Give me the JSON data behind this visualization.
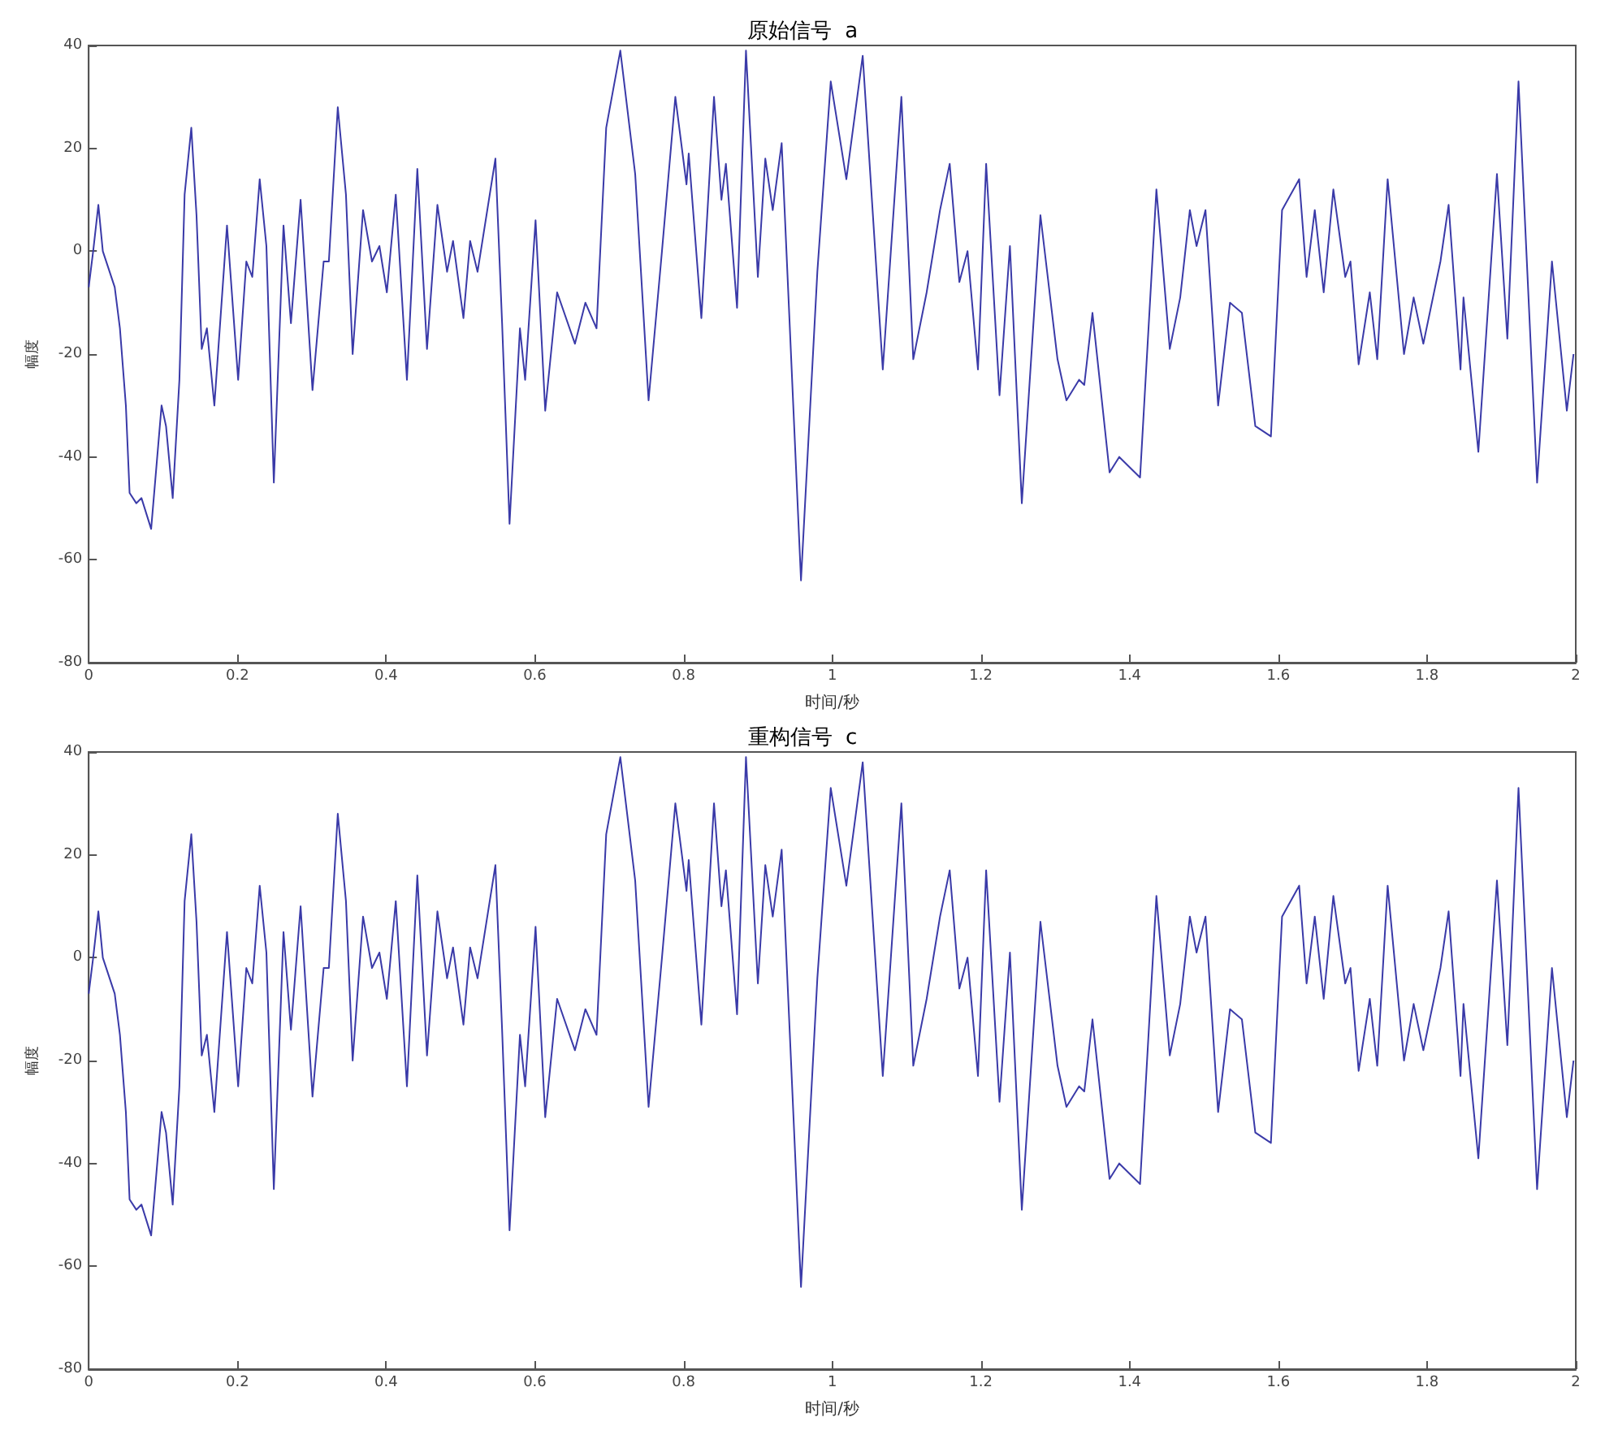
{
  "chart_data": [
    {
      "type": "line",
      "title": "原始信号  a",
      "xlabel": "时间/秒",
      "ylabel": "幅度",
      "xlim": [
        0,
        2
      ],
      "ylim": [
        -80,
        40
      ],
      "xticks": [
        0,
        0.2,
        0.4,
        0.6,
        0.8,
        1,
        1.2,
        1.4,
        1.6,
        1.8,
        2
      ],
      "yticks": [
        -80,
        -60,
        -40,
        -20,
        0,
        20,
        40
      ],
      "grid": false,
      "marker": "none",
      "line_style": "solid",
      "series": [
        {
          "color": "#3a3aa8",
          "x": [
            0,
            0.006,
            0.013,
            0.019,
            0.035,
            0.042,
            0.05,
            0.055,
            0.064,
            0.071,
            0.084,
            0.091,
            0.098,
            0.104,
            0.113,
            0.122,
            0.129,
            0.138,
            0.145,
            0.152,
            0.159,
            0.169,
            0.186,
            0.201,
            0.212,
            0.22,
            0.23,
            0.239,
            0.249,
            0.262,
            0.272,
            0.285,
            0.301,
            0.316,
            0.323,
            0.335,
            0.346,
            0.355,
            0.369,
            0.381,
            0.391,
            0.401,
            0.413,
            0.428,
            0.442,
            0.455,
            0.469,
            0.482,
            0.49,
            0.504,
            0.513,
            0.523,
            0.547,
            0.556,
            0.566,
            0.58,
            0.587,
            0.601,
            0.614,
            0.63,
            0.654,
            0.668,
            0.683,
            0.696,
            0.715,
            0.735,
            0.753,
            0.771,
            0.789,
            0.804,
            0.807,
            0.824,
            0.841,
            0.851,
            0.857,
            0.872,
            0.884,
            0.9,
            0.91,
            0.92,
            0.932,
            0.958,
            0.98,
            0.998,
            1.019,
            1.041,
            1.068,
            1.093,
            1.109,
            1.127,
            1.145,
            1.158,
            1.171,
            1.182,
            1.196,
            1.207,
            1.225,
            1.239,
            1.255,
            1.28,
            1.303,
            1.315,
            1.332,
            1.339,
            1.35,
            1.373,
            1.386,
            1.414,
            1.436,
            1.454,
            1.468,
            1.481,
            1.49,
            1.502,
            1.519,
            1.535,
            1.551,
            1.569,
            1.59,
            1.605,
            1.628,
            1.638,
            1.649,
            1.661,
            1.674,
            1.69,
            1.697,
            1.708,
            1.723,
            1.733,
            1.747,
            1.769,
            1.782,
            1.795,
            1.818,
            1.829,
            1.845,
            1.849,
            1.869,
            1.894,
            1.908,
            1.923,
            1.948,
            1.968,
            1.988,
            1.997
          ],
          "values": [
            -7,
            0,
            9,
            0,
            -7,
            -15,
            -30,
            -47,
            -49,
            -48,
            -54,
            -42,
            -30,
            -34,
            -48,
            -25,
            11,
            24,
            7,
            -19,
            -15,
            -30,
            5,
            -25,
            -2,
            -5,
            14,
            1,
            -45,
            5,
            -14,
            10,
            -27,
            -2,
            -2,
            28,
            11,
            -20,
            8,
            -2,
            1,
            -8,
            11,
            -25,
            16,
            -19,
            9,
            -4,
            2,
            -13,
            2,
            -4,
            18,
            -14,
            -53,
            -15,
            -25,
            6,
            -31,
            -8,
            -18,
            -10,
            -15,
            24,
            39,
            15,
            -29,
            0,
            30,
            13,
            19,
            -13,
            30,
            10,
            17,
            -11,
            39,
            -5,
            18,
            8,
            21,
            -64,
            -4,
            33,
            14,
            38,
            -23,
            30,
            -21,
            -8,
            8,
            17,
            -6,
            0,
            -23,
            17,
            -28,
            1,
            -49,
            7,
            -21,
            -29,
            -25,
            -26,
            -12,
            -43,
            -40,
            -44,
            12,
            -19,
            -9,
            8,
            1,
            8,
            -30,
            -10,
            -12,
            -34,
            -36,
            8,
            14,
            -5,
            8,
            -8,
            12,
            -5,
            -2,
            -22,
            -8,
            -21,
            14,
            -20,
            -9,
            -18,
            -2,
            9,
            -23,
            -9,
            -39,
            15,
            -17,
            33,
            -45,
            -2,
            -31,
            -20
          ]
        }
      ]
    },
    {
      "type": "line",
      "title": "重构信号  c",
      "xlabel": "时间/秒",
      "ylabel": "幅度",
      "xlim": [
        0,
        2
      ],
      "ylim": [
        -80,
        40
      ],
      "xticks": [
        0,
        0.2,
        0.4,
        0.6,
        0.8,
        1,
        1.2,
        1.4,
        1.6,
        1.8,
        2
      ],
      "yticks": [
        -80,
        -60,
        -40,
        -20,
        0,
        20,
        40
      ],
      "grid": false,
      "marker": "none",
      "line_style": "solid",
      "series": [
        {
          "color": "#3a3aa8",
          "x": [
            0,
            0.006,
            0.013,
            0.019,
            0.035,
            0.042,
            0.05,
            0.055,
            0.064,
            0.071,
            0.084,
            0.091,
            0.098,
            0.104,
            0.113,
            0.122,
            0.129,
            0.138,
            0.145,
            0.152,
            0.159,
            0.169,
            0.186,
            0.201,
            0.212,
            0.22,
            0.23,
            0.239,
            0.249,
            0.262,
            0.272,
            0.285,
            0.301,
            0.316,
            0.323,
            0.335,
            0.346,
            0.355,
            0.369,
            0.381,
            0.391,
            0.401,
            0.413,
            0.428,
            0.442,
            0.455,
            0.469,
            0.482,
            0.49,
            0.504,
            0.513,
            0.523,
            0.547,
            0.556,
            0.566,
            0.58,
            0.587,
            0.601,
            0.614,
            0.63,
            0.654,
            0.668,
            0.683,
            0.696,
            0.715,
            0.735,
            0.753,
            0.771,
            0.789,
            0.804,
            0.807,
            0.824,
            0.841,
            0.851,
            0.857,
            0.872,
            0.884,
            0.9,
            0.91,
            0.92,
            0.932,
            0.958,
            0.98,
            0.998,
            1.019,
            1.041,
            1.068,
            1.093,
            1.109,
            1.127,
            1.145,
            1.158,
            1.171,
            1.182,
            1.196,
            1.207,
            1.225,
            1.239,
            1.255,
            1.28,
            1.303,
            1.315,
            1.332,
            1.339,
            1.35,
            1.373,
            1.386,
            1.414,
            1.436,
            1.454,
            1.468,
            1.481,
            1.49,
            1.502,
            1.519,
            1.535,
            1.551,
            1.569,
            1.59,
            1.605,
            1.628,
            1.638,
            1.649,
            1.661,
            1.674,
            1.69,
            1.697,
            1.708,
            1.723,
            1.733,
            1.747,
            1.769,
            1.782,
            1.795,
            1.818,
            1.829,
            1.845,
            1.849,
            1.869,
            1.894,
            1.908,
            1.923,
            1.948,
            1.968,
            1.988,
            1.997
          ],
          "values": [
            -7,
            0,
            9,
            0,
            -7,
            -15,
            -30,
            -47,
            -49,
            -48,
            -54,
            -42,
            -30,
            -34,
            -48,
            -25,
            11,
            24,
            7,
            -19,
            -15,
            -30,
            5,
            -25,
            -2,
            -5,
            14,
            1,
            -45,
            5,
            -14,
            10,
            -27,
            -2,
            -2,
            28,
            11,
            -20,
            8,
            -2,
            1,
            -8,
            11,
            -25,
            16,
            -19,
            9,
            -4,
            2,
            -13,
            2,
            -4,
            18,
            -14,
            -53,
            -15,
            -25,
            6,
            -31,
            -8,
            -18,
            -10,
            -15,
            24,
            39,
            15,
            -29,
            0,
            30,
            13,
            19,
            -13,
            30,
            10,
            17,
            -11,
            39,
            -5,
            18,
            8,
            21,
            -64,
            -4,
            33,
            14,
            38,
            -23,
            30,
            -21,
            -8,
            8,
            17,
            -6,
            0,
            -23,
            17,
            -28,
            1,
            -49,
            7,
            -21,
            -29,
            -25,
            -26,
            -12,
            -43,
            -40,
            -44,
            12,
            -19,
            -9,
            8,
            1,
            8,
            -30,
            -10,
            -12,
            -34,
            -36,
            8,
            14,
            -5,
            8,
            -8,
            12,
            -5,
            -2,
            -22,
            -8,
            -21,
            14,
            -20,
            -9,
            -18,
            -2,
            9,
            -23,
            -9,
            -39,
            15,
            -17,
            33,
            -45,
            -2,
            -31,
            -20
          ]
        }
      ]
    }
  ]
}
